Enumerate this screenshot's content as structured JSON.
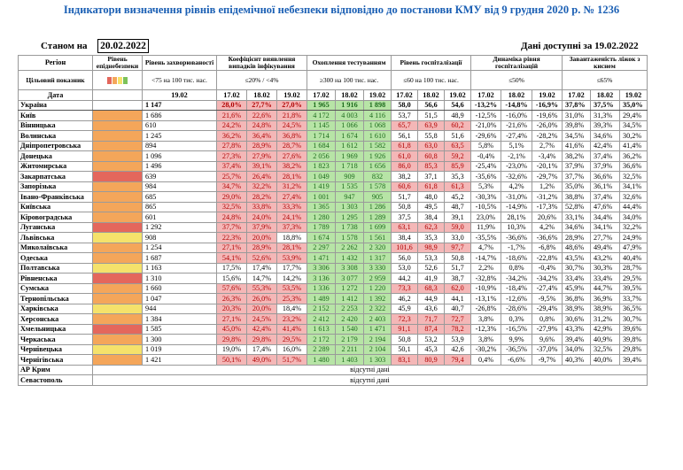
{
  "title": "Індикатори визначення рівнів епідемічної небезпеки відповідно до постанови КМУ від 9 грудня 2020 р. № 1236",
  "status_label": "Станом на",
  "status_date": "20.02.2022",
  "data_available": "Дані доступні за 19.02.2022",
  "headers": {
    "region": "Регіон",
    "level": "Рівень епіднебезпеки",
    "incidence": "Рівень захворюваності",
    "detection": "Коефіцієнт виявлення випадків інфікування",
    "testing": "Охоплення тестуванням",
    "hosp": "Рівень госпіталізації",
    "dyn": "Динаміка рівня госпіталізацій",
    "beds": "Завантаженість ліжок з киснем",
    "target": "Цільовий показник",
    "target_inc": "<75 на 100 тис. нас.",
    "target_det": "≤20% / <4%",
    "target_test": "≥300 на 100 тис. нас.",
    "target_hosp": "≤60 на 100 тис. нас.",
    "target_dyn": "≤50%",
    "target_beds": "≤65%",
    "date_label": "Дата",
    "d1902": "19.02",
    "d1702": "17.02",
    "d1802": "18.02"
  },
  "rows": [
    {
      "name": "Україна",
      "lvl": "none",
      "inc": "1 147",
      "det": [
        "28,0%",
        "27,7%",
        "27,0%"
      ],
      "tst": [
        "1 965",
        "1 916",
        "1 898"
      ],
      "hsp": [
        "58,0",
        "56,6",
        "54,6"
      ],
      "dyn": [
        "-13,2%",
        "-14,8%",
        "-16,9%"
      ],
      "bed": [
        "37,8%",
        "37,5%",
        "35,0%"
      ],
      "det_red": true,
      "tst_grn": true,
      "hsp_red": false
    },
    {
      "name": "Київ",
      "lvl": "orange",
      "inc": "1 686",
      "det": [
        "21,6%",
        "22,6%",
        "21,8%"
      ],
      "tst": [
        "4 172",
        "4 003",
        "4 116"
      ],
      "hsp": [
        "53,7",
        "51,5",
        "48,9"
      ],
      "dyn": [
        "-12,5%",
        "-16,0%",
        "-19,6%"
      ],
      "bed": [
        "31,0%",
        "31,3%",
        "29,4%"
      ],
      "det_red": true,
      "tst_grn": true,
      "hsp_red": false
    },
    {
      "name": "Вінницька",
      "lvl": "orange",
      "inc": "610",
      "det": [
        "24,2%",
        "24,8%",
        "24,5%"
      ],
      "tst": [
        "1 145",
        "1 066",
        "1 068"
      ],
      "hsp": [
        "65,7",
        "63,9",
        "60,2"
      ],
      "dyn": [
        "-21,0%",
        "-21,6%",
        "-26,0%"
      ],
      "bed": [
        "39,8%",
        "39,3%",
        "34,5%"
      ],
      "det_red": true,
      "tst_grn": true,
      "hsp_red": true
    },
    {
      "name": "Волинська",
      "lvl": "orange",
      "inc": "1 245",
      "det": [
        "36,2%",
        "36,4%",
        "36,8%"
      ],
      "tst": [
        "1 714",
        "1 674",
        "1 610"
      ],
      "hsp": [
        "56,1",
        "55,8",
        "51,6"
      ],
      "dyn": [
        "-29,6%",
        "-27,4%",
        "-28,2%"
      ],
      "bed": [
        "34,5%",
        "34,6%",
        "30,2%"
      ],
      "det_red": true,
      "tst_grn": true,
      "hsp_red": false
    },
    {
      "name": "Дніпропетровська",
      "lvl": "orange",
      "inc": "894",
      "det": [
        "27,8%",
        "28,9%",
        "28,7%"
      ],
      "tst": [
        "1 684",
        "1 612",
        "1 582"
      ],
      "hsp": [
        "61,8",
        "63,0",
        "63,5"
      ],
      "dyn": [
        "5,8%",
        "5,1%",
        "2,7%"
      ],
      "bed": [
        "41,6%",
        "42,4%",
        "41,4%"
      ],
      "det_red": true,
      "tst_grn": true,
      "hsp_red": true
    },
    {
      "name": "Донецька",
      "lvl": "orange",
      "inc": "1 096",
      "det": [
        "27,3%",
        "27,9%",
        "27,6%"
      ],
      "tst": [
        "2 056",
        "1 969",
        "1 926"
      ],
      "hsp": [
        "61,0",
        "60,8",
        "59,2"
      ],
      "dyn": [
        "-0,4%",
        "-2,1%",
        "-3,4%"
      ],
      "bed": [
        "38,2%",
        "37,4%",
        "36,2%"
      ],
      "det_red": true,
      "tst_grn": true,
      "hsp_red": true
    },
    {
      "name": "Житомирська",
      "lvl": "orange",
      "inc": "1 496",
      "det": [
        "37,4%",
        "39,1%",
        "38,2%"
      ],
      "tst": [
        "1 823",
        "1 718",
        "1 656"
      ],
      "hsp": [
        "86,0",
        "85,3",
        "85,9"
      ],
      "dyn": [
        "-25,4%",
        "-23,0%",
        "-20,1%"
      ],
      "bed": [
        "37,9%",
        "37,9%",
        "36,6%"
      ],
      "det_red": true,
      "tst_grn": true,
      "hsp_red": true
    },
    {
      "name": "Закарпатська",
      "lvl": "red",
      "inc": "639",
      "det": [
        "25,7%",
        "26,4%",
        "28,1%"
      ],
      "tst": [
        "1 049",
        "909",
        "832"
      ],
      "hsp": [
        "38,2",
        "37,1",
        "35,3"
      ],
      "dyn": [
        "-35,6%",
        "-32,6%",
        "-29,7%"
      ],
      "bed": [
        "37,7%",
        "36,6%",
        "32,5%"
      ],
      "det_red": true,
      "tst_grn": true,
      "hsp_red": false
    },
    {
      "name": "Запорізька",
      "lvl": "orange",
      "inc": "984",
      "det": [
        "34,7%",
        "32,2%",
        "31,2%"
      ],
      "tst": [
        "1 419",
        "1 535",
        "1 578"
      ],
      "hsp": [
        "60,6",
        "61,8",
        "61,3"
      ],
      "dyn": [
        "5,3%",
        "4,2%",
        "1,2%"
      ],
      "bed": [
        "35,0%",
        "36,1%",
        "34,1%"
      ],
      "det_red": true,
      "tst_grn": true,
      "hsp_red": true
    },
    {
      "name": "Івано-Франківська",
      "lvl": "orange",
      "inc": "685",
      "det": [
        "29,0%",
        "28,2%",
        "27,4%"
      ],
      "tst": [
        "1 001",
        "947",
        "905"
      ],
      "hsp": [
        "51,7",
        "48,0",
        "45,2"
      ],
      "dyn": [
        "-30,3%",
        "-31,0%",
        "-31,2%"
      ],
      "bed": [
        "38,8%",
        "37,4%",
        "32,6%"
      ],
      "det_red": true,
      "tst_grn": true,
      "hsp_red": false
    },
    {
      "name": "Київська",
      "lvl": "orange",
      "inc": "865",
      "det": [
        "32,5%",
        "33,8%",
        "33,3%"
      ],
      "tst": [
        "1 365",
        "1 303",
        "1 286"
      ],
      "hsp": [
        "50,8",
        "49,5",
        "48,7"
      ],
      "dyn": [
        "-10,5%",
        "-14,9%",
        "-17,3%"
      ],
      "bed": [
        "52,8%",
        "47,6%",
        "44,4%"
      ],
      "det_red": true,
      "tst_grn": true,
      "hsp_red": false
    },
    {
      "name": "Кіровоградська",
      "lvl": "orange",
      "inc": "601",
      "det": [
        "24,8%",
        "24,0%",
        "24,1%"
      ],
      "tst": [
        "1 280",
        "1 295",
        "1 289"
      ],
      "hsp": [
        "37,5",
        "38,4",
        "39,1"
      ],
      "dyn": [
        "23,0%",
        "28,1%",
        "20,6%"
      ],
      "bed": [
        "33,1%",
        "34,4%",
        "34,0%"
      ],
      "det_red": true,
      "tst_grn": true,
      "hsp_red": false
    },
    {
      "name": "Луганська",
      "lvl": "red",
      "inc": "1 292",
      "det": [
        "37,7%",
        "37,9%",
        "37,3%"
      ],
      "tst": [
        "1 789",
        "1 738",
        "1 699"
      ],
      "hsp": [
        "63,1",
        "62,3",
        "59,0"
      ],
      "dyn": [
        "11,9%",
        "10,3%",
        "4,2%"
      ],
      "bed": [
        "34,6%",
        "34,1%",
        "32,2%"
      ],
      "det_red": true,
      "tst_grn": true,
      "hsp_red": true
    },
    {
      "name": "Львівська",
      "lvl": "yellow",
      "inc": "908",
      "det": [
        "22,3%",
        "20,0%",
        "18,8%"
      ],
      "tst": [
        "1 674",
        "1 578",
        "1 561"
      ],
      "hsp": [
        "38,4",
        "35,3",
        "33,0"
      ],
      "dyn": [
        "-35,5%",
        "-36,6%",
        "-36,6%"
      ],
      "bed": [
        "28,9%",
        "27,7%",
        "24,9%"
      ],
      "det_red": true,
      "tst_grn": true,
      "hsp_red": false,
      "det_last_plain": true
    },
    {
      "name": "Миколаївська",
      "lvl": "orange",
      "inc": "1 254",
      "det": [
        "27,1%",
        "28,9%",
        "28,1%"
      ],
      "tst": [
        "2 297",
        "2 262",
        "2 320"
      ],
      "hsp": [
        "101,6",
        "98,9",
        "97,7"
      ],
      "dyn": [
        "4,7%",
        "-1,7%",
        "-6,8%"
      ],
      "bed": [
        "48,6%",
        "49,4%",
        "47,9%"
      ],
      "det_red": true,
      "tst_grn": true,
      "hsp_red": true
    },
    {
      "name": "Одеська",
      "lvl": "orange",
      "inc": "1 687",
      "det": [
        "54,1%",
        "52,6%",
        "53,9%"
      ],
      "tst": [
        "1 471",
        "1 432",
        "1 317"
      ],
      "hsp": [
        "56,0",
        "53,3",
        "50,8"
      ],
      "dyn": [
        "-14,7%",
        "-18,6%",
        "-22,8%"
      ],
      "bed": [
        "43,5%",
        "43,2%",
        "40,4%"
      ],
      "det_red": true,
      "tst_grn": true,
      "hsp_red": false
    },
    {
      "name": "Полтавська",
      "lvl": "yellow",
      "inc": "1 163",
      "det": [
        "17,5%",
        "17,4%",
        "17,7%"
      ],
      "tst": [
        "3 306",
        "3 308",
        "3 330"
      ],
      "hsp": [
        "53,0",
        "52,6",
        "51,7"
      ],
      "dyn": [
        "2,2%",
        "0,8%",
        "-0,4%"
      ],
      "bed": [
        "30,7%",
        "30,3%",
        "28,7%"
      ],
      "det_red": false,
      "tst_grn": true,
      "hsp_red": false
    },
    {
      "name": "Рівненська",
      "lvl": "red",
      "inc": "1 310",
      "det": [
        "15,6%",
        "14,7%",
        "14,2%"
      ],
      "tst": [
        "3 136",
        "3 077",
        "2 959"
      ],
      "hsp": [
        "44,2",
        "41,9",
        "38,7"
      ],
      "dyn": [
        "-32,8%",
        "-34,2%",
        "-34,2%"
      ],
      "bed": [
        "33,4%",
        "33,4%",
        "29,5%"
      ],
      "det_red": false,
      "tst_grn": true,
      "hsp_red": false
    },
    {
      "name": "Сумська",
      "lvl": "orange",
      "inc": "1 660",
      "det": [
        "57,6%",
        "55,3%",
        "53,5%"
      ],
      "tst": [
        "1 336",
        "1 272",
        "1 220"
      ],
      "hsp": [
        "73,3",
        "68,3",
        "62,0"
      ],
      "dyn": [
        "-10,9%",
        "-18,4%",
        "-27,4%"
      ],
      "bed": [
        "45,9%",
        "44,7%",
        "39,5%"
      ],
      "det_red": true,
      "tst_grn": true,
      "hsp_red": true
    },
    {
      "name": "Тернопільська",
      "lvl": "orange",
      "inc": "1 047",
      "det": [
        "26,3%",
        "26,0%",
        "25,3%"
      ],
      "tst": [
        "1 489",
        "1 412",
        "1 392"
      ],
      "hsp": [
        "46,2",
        "44,9",
        "44,1"
      ],
      "dyn": [
        "-13,1%",
        "-12,6%",
        "-9,5%"
      ],
      "bed": [
        "36,8%",
        "36,9%",
        "33,7%"
      ],
      "det_red": true,
      "tst_grn": true,
      "hsp_red": false
    },
    {
      "name": "Харківська",
      "lvl": "yellow",
      "inc": "944",
      "det": [
        "20,3%",
        "20,0%",
        "18,4%"
      ],
      "tst": [
        "2 152",
        "2 253",
        "2 322"
      ],
      "hsp": [
        "45,9",
        "43,6",
        "40,7"
      ],
      "dyn": [
        "-26,8%",
        "-28,6%",
        "-29,4%"
      ],
      "bed": [
        "38,9%",
        "38,9%",
        "36,5%"
      ],
      "det_red": true,
      "tst_grn": true,
      "hsp_red": false,
      "det_last_plain": true
    },
    {
      "name": "Херсонська",
      "lvl": "orange",
      "inc": "1 384",
      "det": [
        "27,1%",
        "24,5%",
        "23,2%"
      ],
      "tst": [
        "2 412",
        "2 420",
        "2 403"
      ],
      "hsp": [
        "72,3",
        "71,7",
        "72,7"
      ],
      "dyn": [
        "3,8%",
        "0,3%",
        "0,8%"
      ],
      "bed": [
        "30,6%",
        "31,2%",
        "30,7%"
      ],
      "det_red": true,
      "tst_grn": true,
      "hsp_red": true
    },
    {
      "name": "Хмельницька",
      "lvl": "red",
      "inc": "1 585",
      "det": [
        "45,0%",
        "42,4%",
        "41,4%"
      ],
      "tst": [
        "1 613",
        "1 540",
        "1 471"
      ],
      "hsp": [
        "91,1",
        "87,4",
        "78,2"
      ],
      "dyn": [
        "-12,3%",
        "-16,5%",
        "-27,9%"
      ],
      "bed": [
        "43,3%",
        "42,9%",
        "39,6%"
      ],
      "det_red": true,
      "tst_grn": true,
      "hsp_red": true
    },
    {
      "name": "Черкаська",
      "lvl": "orange",
      "inc": "1 300",
      "det": [
        "29,8%",
        "29,8%",
        "29,5%"
      ],
      "tst": [
        "2 172",
        "2 179",
        "2 194"
      ],
      "hsp": [
        "50,8",
        "53,2",
        "53,9"
      ],
      "dyn": [
        "3,8%",
        "9,9%",
        "9,6%"
      ],
      "bed": [
        "39,4%",
        "40,9%",
        "39,8%"
      ],
      "det_red": true,
      "tst_grn": true,
      "hsp_red": false
    },
    {
      "name": "Чернівецька",
      "lvl": "yellow",
      "inc": "1 019",
      "det": [
        "19,0%",
        "17,4%",
        "16,0%"
      ],
      "tst": [
        "2 289",
        "2 211",
        "2 104"
      ],
      "hsp": [
        "50,1",
        "45,3",
        "42,6"
      ],
      "dyn": [
        "-30,2%",
        "-36,5%",
        "-37,0%"
      ],
      "bed": [
        "34,0%",
        "32,5%",
        "29,8%"
      ],
      "det_red": false,
      "tst_grn": true,
      "hsp_red": false
    },
    {
      "name": "Чернігівська",
      "lvl": "orange",
      "inc": "1 421",
      "det": [
        "50,1%",
        "49,0%",
        "51,7%"
      ],
      "tst": [
        "1 480",
        "1 403",
        "1 303"
      ],
      "hsp": [
        "83,1",
        "80,9",
        "79,4"
      ],
      "dyn": [
        "0,4%",
        "-6,6%",
        "-9,7%"
      ],
      "bed": [
        "40,3%",
        "40,0%",
        "39,4%"
      ],
      "det_red": true,
      "tst_grn": true,
      "hsp_red": true
    }
  ],
  "absent": [
    {
      "name": "АР Крим",
      "text": "відсутні дані"
    },
    {
      "name": "Севастополь",
      "text": "відсутні дані"
    }
  ],
  "colors": {
    "red": "#e4675c",
    "orange": "#f4a65a",
    "yellow": "#f5e26b",
    "green": "#7dc25a"
  }
}
